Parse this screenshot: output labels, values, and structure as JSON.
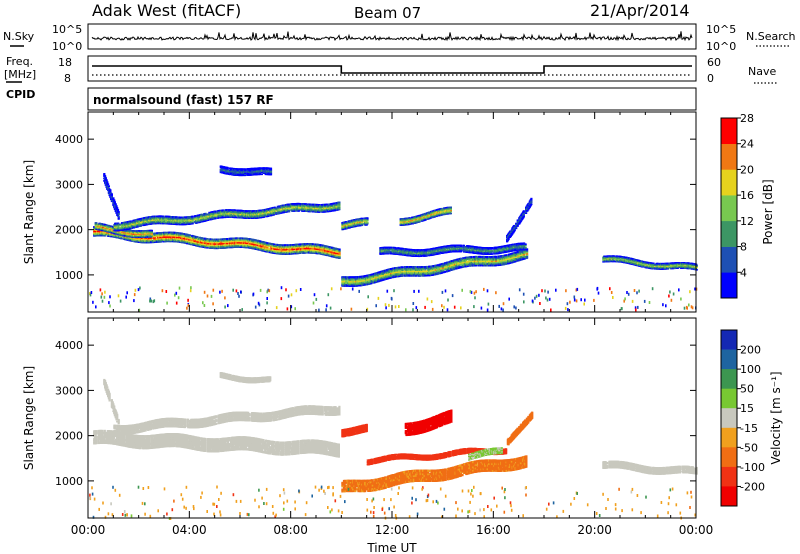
{
  "header": {
    "station": "Adak West (fitACF)",
    "beam": "Beam 07",
    "date": "21/Apr/2014"
  },
  "noise_panel": {
    "left_label": "N.Sky",
    "right_label": "N.Search",
    "left_ticks": [
      "10^5",
      "10^0"
    ],
    "right_ticks": [
      "10^5",
      "10^0"
    ]
  },
  "freq_panel": {
    "left_label_1": "Freq.",
    "left_label_2": "[MHz]",
    "cpid_label": "CPID",
    "right_label": "Nave",
    "left_ticks": [
      "18",
      "8"
    ],
    "right_ticks": [
      "60",
      "0"
    ],
    "mode_text": "normalsound (fast) 157 RF",
    "freq_steps": [
      {
        "start_hour": 0,
        "end_hour": 10,
        "level": "high"
      },
      {
        "start_hour": 10,
        "end_hour": 18,
        "level": "low"
      },
      {
        "start_hour": 18,
        "end_hour": 24,
        "level": "high"
      }
    ]
  },
  "chart_data": [
    {
      "type": "heatmap",
      "panel": "power",
      "ylabel": "Slant Range [km]",
      "xlabel": "",
      "xlim": [
        0,
        24
      ],
      "ylim": [
        180,
        4600
      ],
      "y_ticks": [
        "1000",
        "2000",
        "3000",
        "4000"
      ],
      "colorbar_label": "Power [dB]",
      "colorbar_ticks": [
        "4",
        "8",
        "12",
        "16",
        "20",
        "24",
        "28"
      ],
      "colorbar_colors": [
        "#0000ff",
        "#1e50b4",
        "#3c9664",
        "#78c850",
        "#e6d21e",
        "#f07814",
        "#ff0000"
      ],
      "features": [
        {
          "t0": 0.2,
          "t1": 9.9,
          "r0": 1950,
          "r1": 1500,
          "width": 220,
          "peak": 27
        },
        {
          "t0": 0.2,
          "t1": 2.5,
          "r0": 2050,
          "r1": 1900,
          "width": 160,
          "peak": 24
        },
        {
          "t0": 1.0,
          "t1": 9.9,
          "r0": 2100,
          "r1": 2550,
          "width": 180,
          "peak": 18
        },
        {
          "t0": 0.6,
          "t1": 1.2,
          "r0": 3200,
          "r1": 2300,
          "width": 180,
          "peak": 8
        },
        {
          "t0": 5.2,
          "t1": 7.2,
          "r0": 3350,
          "r1": 3250,
          "width": 160,
          "peak": 10
        },
        {
          "t0": 10.0,
          "t1": 17.3,
          "r0": 850,
          "r1": 1450,
          "width": 220,
          "peak": 20
        },
        {
          "t0": 11.5,
          "t1": 17.3,
          "r0": 1500,
          "r1": 1600,
          "width": 160,
          "peak": 13
        },
        {
          "t0": 12.3,
          "t1": 14.3,
          "r0": 2200,
          "r1": 2400,
          "width": 160,
          "peak": 22
        },
        {
          "t0": 10.0,
          "t1": 11.0,
          "r0": 2100,
          "r1": 2150,
          "width": 170,
          "peak": 21
        },
        {
          "t0": 16.5,
          "t1": 17.5,
          "r0": 1800,
          "r1": 2700,
          "width": 150,
          "peak": 9
        },
        {
          "t0": 20.3,
          "t1": 24.0,
          "r0": 1350,
          "r1": 1150,
          "width": 140,
          "peak": 17
        }
      ]
    },
    {
      "type": "heatmap",
      "panel": "velocity",
      "ylabel": "Slant Range [km]",
      "xlabel": "Time UT",
      "xlim": [
        0,
        24
      ],
      "ylim": [
        180,
        4600
      ],
      "x_ticks": [
        "00:00",
        "04:00",
        "08:00",
        "12:00",
        "16:00",
        "20:00",
        "00:00"
      ],
      "y_ticks": [
        "1000",
        "2000",
        "3000",
        "4000"
      ],
      "colorbar_label": "Velocity [m s⁻¹]",
      "colorbar_ticks": [
        "200",
        "100",
        "50",
        "15",
        "-15",
        "-50",
        "-100",
        "-200"
      ],
      "colorbar_colors": [
        "#1428b4",
        "#1e64a0",
        "#3c9650",
        "#78c832",
        "#c8c8be",
        "#f0a01e",
        "#f06e14",
        "#f03214",
        "#f00000"
      ],
      "features": [
        {
          "t0": 0.2,
          "t1": 9.9,
          "r0": 1950,
          "r1": 1700,
          "width": 300,
          "vel": 0
        },
        {
          "t0": 1.0,
          "t1": 9.9,
          "r0": 2150,
          "r1": 2600,
          "width": 200,
          "vel": 0
        },
        {
          "t0": 0.6,
          "t1": 1.2,
          "r0": 3200,
          "r1": 2300,
          "width": 180,
          "vel": 0
        },
        {
          "t0": 5.2,
          "t1": 7.2,
          "r0": 3320,
          "r1": 3230,
          "width": 120,
          "vel": 0
        },
        {
          "t0": 10.0,
          "t1": 17.3,
          "r0": 850,
          "r1": 1450,
          "width": 260,
          "vel": -60
        },
        {
          "t0": 11.0,
          "t1": 16.5,
          "r0": 1450,
          "r1": 1700,
          "width": 120,
          "vel": -130
        },
        {
          "t0": 12.5,
          "t1": 14.3,
          "r0": 2150,
          "r1": 2400,
          "width": 280,
          "vel": -220
        },
        {
          "t0": 10.0,
          "t1": 11.0,
          "r0": 2100,
          "r1": 2150,
          "width": 170,
          "vel": -180
        },
        {
          "t0": 16.5,
          "t1": 17.5,
          "r0": 1800,
          "r1": 2500,
          "width": 150,
          "vel": -80
        },
        {
          "t0": 15.0,
          "t1": 16.3,
          "r0": 1550,
          "r1": 1650,
          "width": 140,
          "vel": 20
        },
        {
          "t0": 20.3,
          "t1": 24.0,
          "r0": 1350,
          "r1": 1200,
          "width": 160,
          "vel": 0
        }
      ]
    }
  ]
}
